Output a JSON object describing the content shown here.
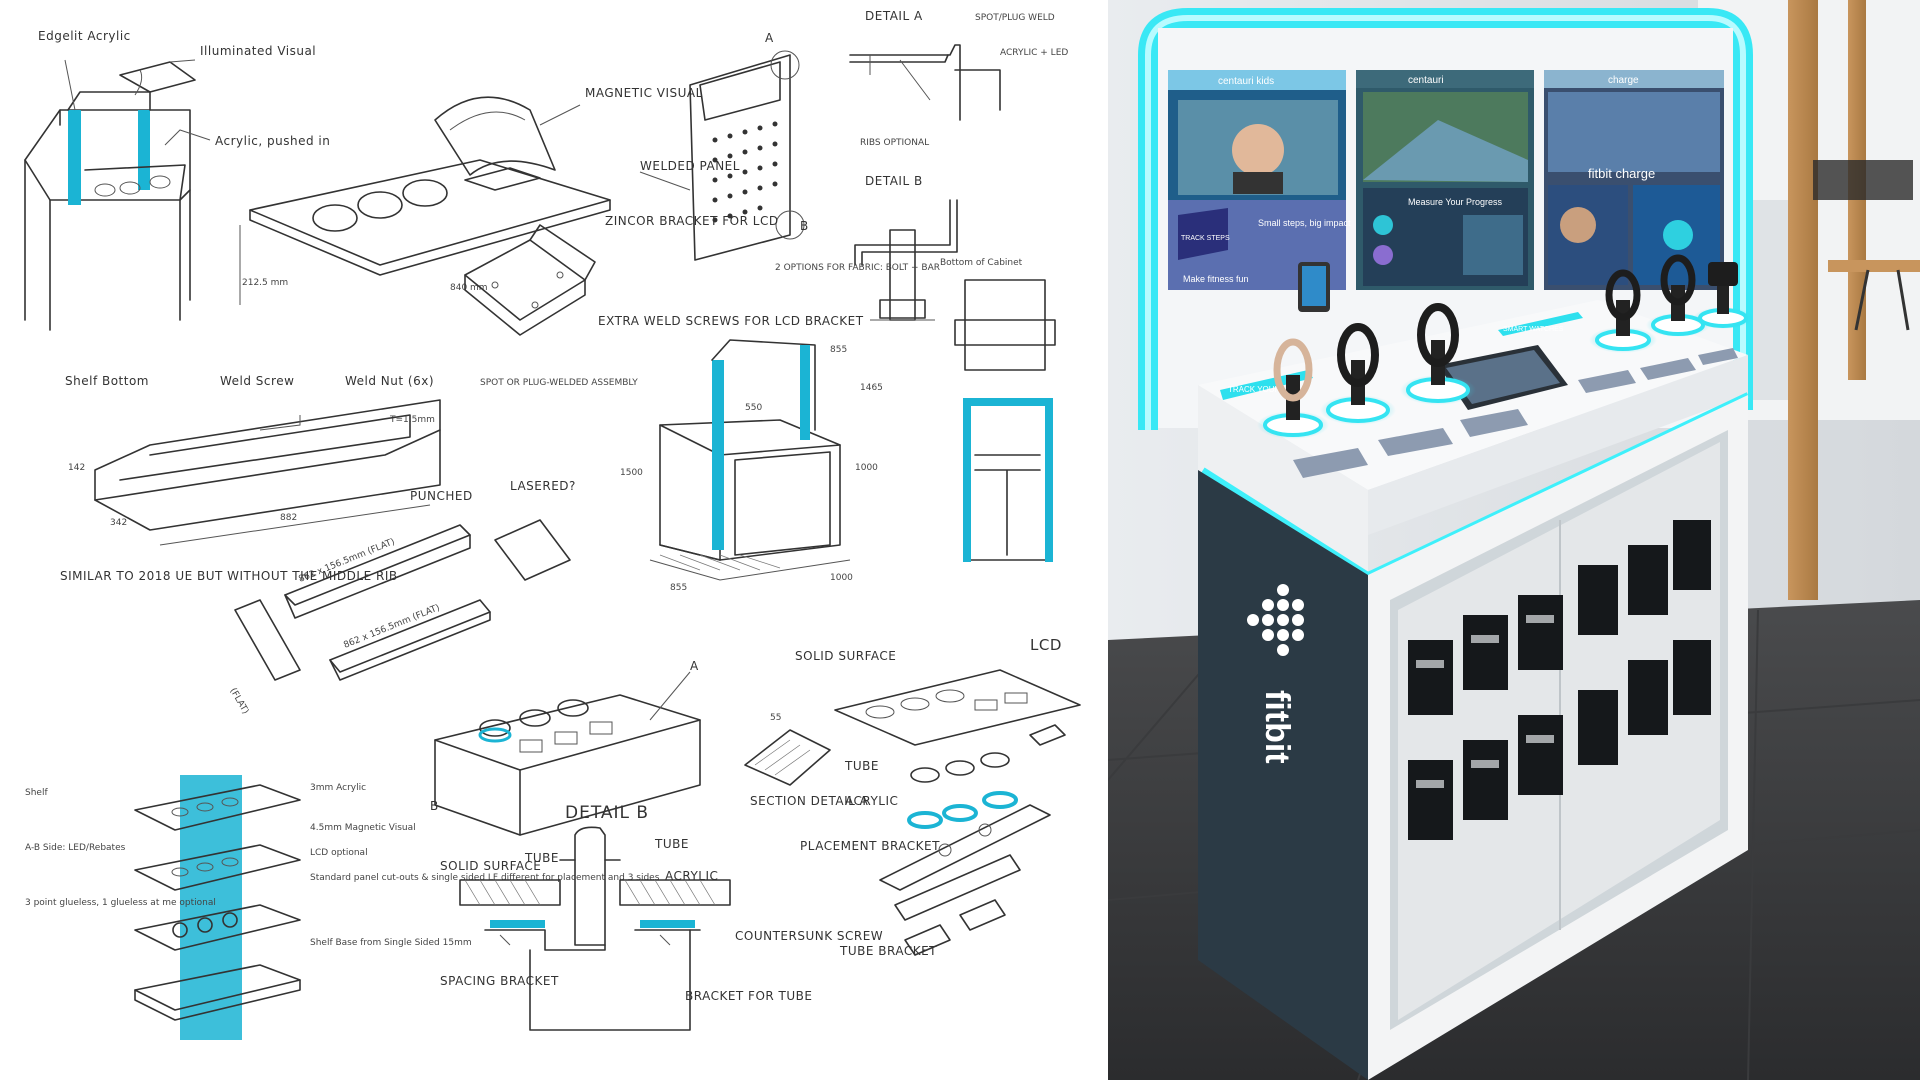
{
  "sketch": {
    "labels": {
      "edge_lit_acrylic": "Edgelit Acrylic",
      "illuminated_visual": "Illuminated Visual",
      "acrylic_pushed_in": "Acrylic, pushed in",
      "magnetic_visual": "MAGNETIC VISUAL",
      "welded_panel": "WELDED PANEL",
      "zincor_bracket": "ZINCOR BRACKET FOR LCD",
      "extra_weld_screws": "EXTRA WELD SCREWS FOR LCD BRACKET",
      "dim_840": "840 mm",
      "dim_212": "212.5 mm",
      "marker_a": "A",
      "marker_b": "B",
      "detail_a": "DETAIL A",
      "spot_plug_weld": "SPOT/PLUG WELD",
      "acrylic_led": "ACRYLIC + LED",
      "ribs_optional": "RIBS OPTIONAL",
      "detail_b": "DETAIL B",
      "bottom_of_cabinet": "Bottom of Cabinet",
      "two_options": "2 OPTIONS FOR FABRIC: BOLT + BAR",
      "shelf_bottom": "Shelf Bottom",
      "weld_screw": "Weld Screw",
      "weld_nut": "Weld Nut (6x)",
      "thickness": "T=1.5mm",
      "dim_882": "882",
      "dim_142": "142",
      "dim_342": "342",
      "punched": "PUNCHED",
      "lasered": "LASERED?",
      "flat_1": "862 x 156.5mm (FLAT)",
      "flat_2": "862 x 156.5mm (FLAT)",
      "flat_3": "(FLAT)",
      "similar_note": "SIMILAR TO 2018 UE BUT WITHOUT THE MIDDLE RIB",
      "spot_or_plug": "SPOT OR PLUG-WELDED ASSEMBLY",
      "dim_855": "855",
      "dim_1500": "1500",
      "dim_1000": "1000",
      "dim_550": "550",
      "dim_1465": "1465",
      "dim_1000b": "1000",
      "dim_855b": "855",
      "shelf": "Shelf",
      "ab_side": "A-B Side: LED/Rebates",
      "three_points": "3 point glueless, 1 glueless at me optional",
      "acrylic_3mm": "3mm Acrylic",
      "magnetic_4": "4.5mm Magnetic Visual",
      "lcd_optional": "LCD optional",
      "standard_panel": "Standard panel cut-outs & single sided LF different for placement and 3 sides",
      "shelf_base": "Shelf Base from Single Sided 15mm",
      "solid_surface_1": "SOLID SURFACE",
      "lcd": "LCD",
      "marker_a2": "A",
      "marker_b2": "B",
      "dim_55": "55",
      "section_detail": "SECTION DETAIL A",
      "tube_1": "TUBE",
      "acrylic_1": "ACRYLIC",
      "placement_bracket": "PLACEMENT BRACKET",
      "detail_b2": "DETAIL B",
      "tube_2": "TUBE",
      "tube_3": "TUBE",
      "solid_surface_2": "SOLID SURFACE",
      "acrylic_2": "ACRYLIC",
      "countersunk": "COUNTERSUNK SCREW",
      "spacing_bracket": "SPACING BRACKET",
      "bracket_tube": "BRACKET FOR TUBE",
      "tube_bracket": "TUBE BRACKET"
    }
  },
  "photo": {
    "screens": {
      "panel1_title": "centauri kids",
      "panel1_headline": "Small steps, big impact",
      "panel1_body": "Make fitness fun",
      "panel1_badge": "TRACK STEPS",
      "panel2_title": "centauri",
      "panel2_headline": "Measure Your Progress",
      "panel3_title": "charge",
      "panel3_headline": "fitbit charge"
    },
    "strip_left": "TRACK YOUR",
    "strip_right": "SMART WATCHES",
    "brand": "fitbit"
  },
  "colors": {
    "accent": "#1bb4d4",
    "led": "#2ee6f2",
    "cabinet_dark": "#2b3a45"
  }
}
